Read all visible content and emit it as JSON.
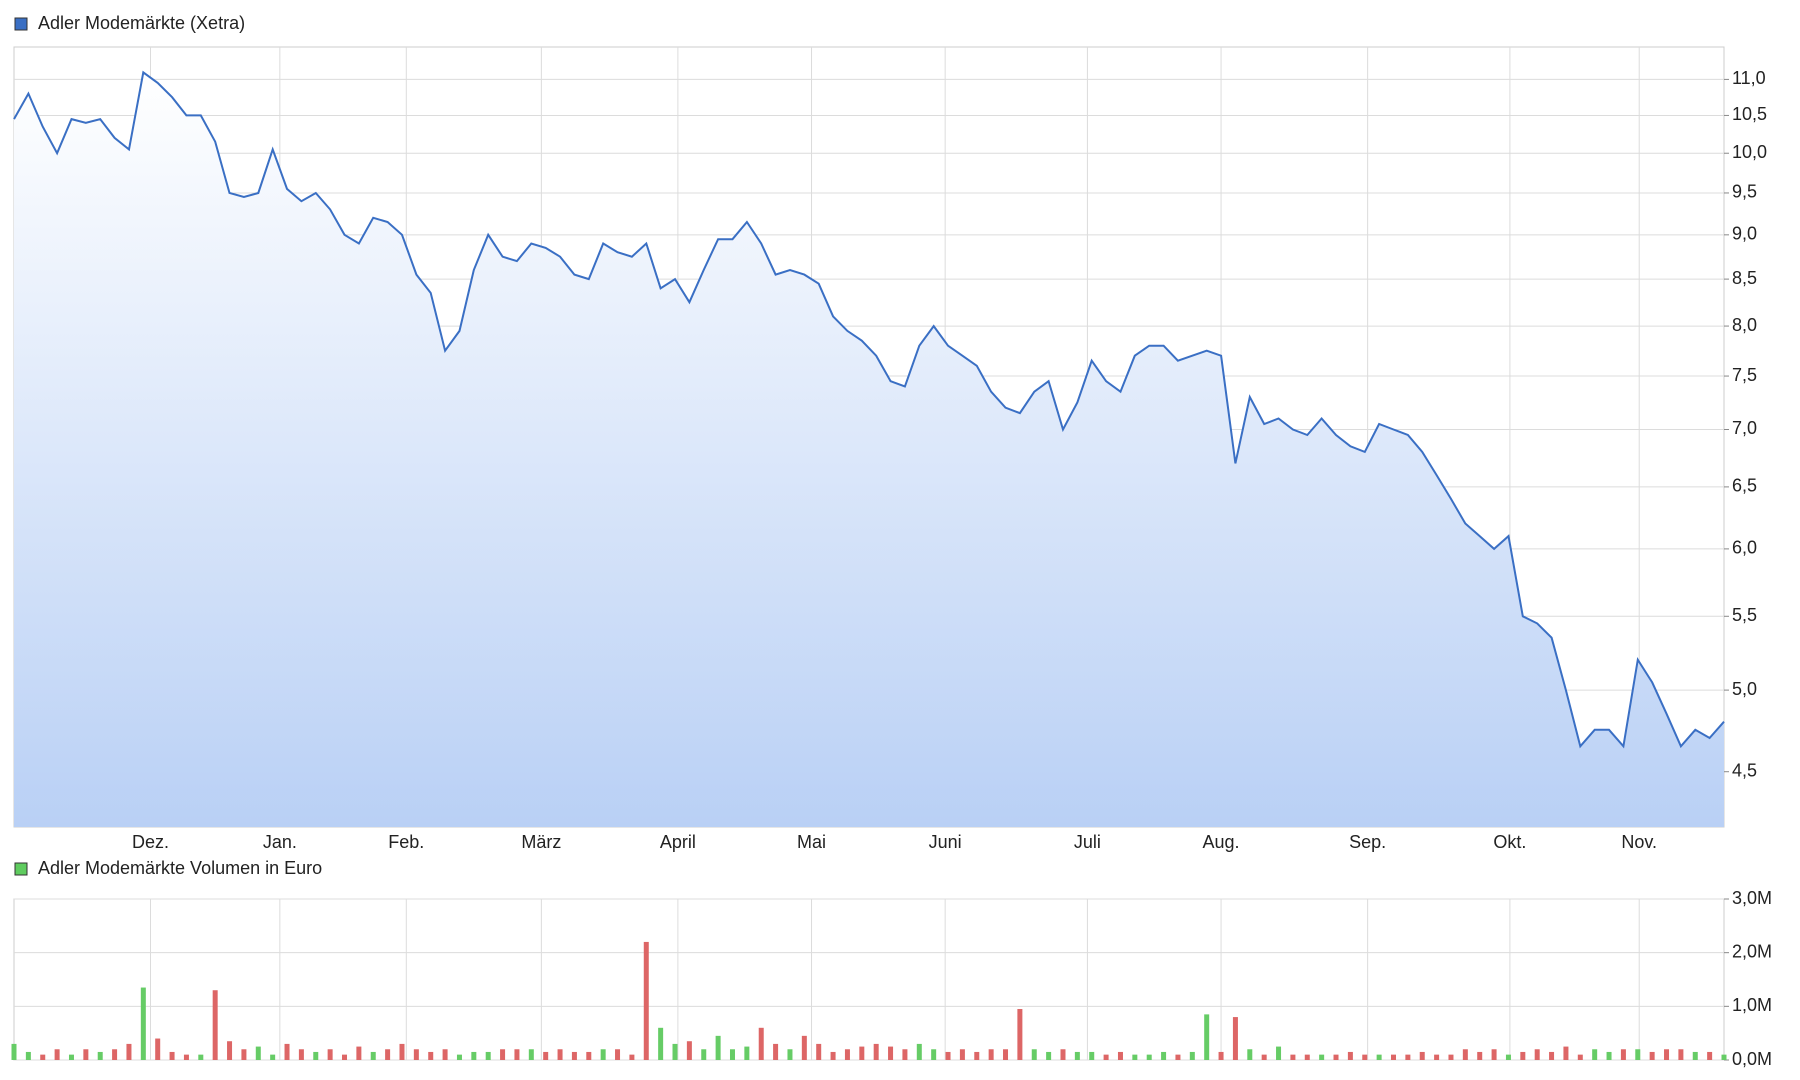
{
  "chart_data": [
    {
      "type": "line",
      "title": "Adler Modemärkte (Xetra)",
      "color": "#3a6fc4",
      "log": true,
      "grid": true,
      "values": [
        10.45,
        10.8,
        10.35,
        10.0,
        10.45,
        10.4,
        10.45,
        10.2,
        10.05,
        11.1,
        10.95,
        10.75,
        10.5,
        10.5,
        10.15,
        9.5,
        9.45,
        9.5,
        10.05,
        9.55,
        9.4,
        9.5,
        9.3,
        9.0,
        8.9,
        9.2,
        9.15,
        9.0,
        8.55,
        8.35,
        7.75,
        7.95,
        8.6,
        9.0,
        8.75,
        8.7,
        8.9,
        8.85,
        8.75,
        8.55,
        8.5,
        8.9,
        8.8,
        8.75,
        8.9,
        8.4,
        8.5,
        8.25,
        8.6,
        8.95,
        8.95,
        9.15,
        8.9,
        8.55,
        8.6,
        8.55,
        8.45,
        8.1,
        7.95,
        7.85,
        7.7,
        7.45,
        7.4,
        7.8,
        8.0,
        7.8,
        7.7,
        7.6,
        7.35,
        7.2,
        7.15,
        7.35,
        7.45,
        7.0,
        7.25,
        7.65,
        7.45,
        7.35,
        7.7,
        7.8,
        7.8,
        7.65,
        7.7,
        7.75,
        7.7,
        6.7,
        7.3,
        7.05,
        7.1,
        7.0,
        6.95,
        7.1,
        6.95,
        6.85,
        6.8,
        7.05,
        7.0,
        6.95,
        6.8,
        6.6,
        6.4,
        6.2,
        6.1,
        6.0,
        6.1,
        5.5,
        5.45,
        5.35,
        5.0,
        4.65,
        4.75,
        4.75,
        4.65,
        5.2,
        5.05,
        4.85,
        4.65,
        4.75,
        4.7,
        4.8
      ],
      "xticks": [
        {
          "value": 9.5,
          "label": "Dez."
        },
        {
          "value": 18.5,
          "label": "Jan."
        },
        {
          "value": 27.3,
          "label": "Feb."
        },
        {
          "value": 36.7,
          "label": "März"
        },
        {
          "value": 46.2,
          "label": "April"
        },
        {
          "value": 55.5,
          "label": "Mai"
        },
        {
          "value": 64.8,
          "label": "Juni"
        },
        {
          "value": 74.7,
          "label": "Juli"
        },
        {
          "value": 84.0,
          "label": "Aug."
        },
        {
          "value": 94.2,
          "label": "Sep."
        },
        {
          "value": 104.1,
          "label": "Okt."
        },
        {
          "value": 113.1,
          "label": "Nov."
        }
      ],
      "ylim": [
        4.19,
        11.47
      ],
      "yticks": [
        {
          "value": 4.5,
          "label": "4,5"
        },
        {
          "value": 5.0,
          "label": "5,0"
        },
        {
          "value": 5.5,
          "label": "5,5"
        },
        {
          "value": 6.0,
          "label": "6,0"
        },
        {
          "value": 6.5,
          "label": "6,5"
        },
        {
          "value": 7.0,
          "label": "7,0"
        },
        {
          "value": 7.5,
          "label": "7,5"
        },
        {
          "value": 8.0,
          "label": "8,0"
        },
        {
          "value": 8.5,
          "label": "8,5"
        },
        {
          "value": 9.0,
          "label": "9,0"
        },
        {
          "value": 9.5,
          "label": "9,5"
        },
        {
          "value": 10.0,
          "label": "10,0"
        },
        {
          "value": 10.5,
          "label": "10,5"
        },
        {
          "value": 11.0,
          "label": "11,0"
        }
      ]
    },
    {
      "type": "bar",
      "title": "Adler Modemärkte Volumen in Euro",
      "color": "#5fcc5f",
      "grid": true,
      "values": [
        0.3,
        0.15,
        0.1,
        0.2,
        0.1,
        0.2,
        0.15,
        0.2,
        0.3,
        1.35,
        0.4,
        0.15,
        0.1,
        0.1,
        1.3,
        0.35,
        0.2,
        0.25,
        0.1,
        0.3,
        0.2,
        0.15,
        0.2,
        0.1,
        0.25,
        0.15,
        0.2,
        0.3,
        0.2,
        0.15,
        0.2,
        0.1,
        0.15,
        0.15,
        0.2,
        0.2,
        0.2,
        0.15,
        0.2,
        0.15,
        0.15,
        0.2,
        0.2,
        0.1,
        2.2,
        0.6,
        0.3,
        0.35,
        0.2,
        0.45,
        0.2,
        0.25,
        0.6,
        0.3,
        0.2,
        0.45,
        0.3,
        0.15,
        0.2,
        0.25,
        0.3,
        0.25,
        0.2,
        0.3,
        0.2,
        0.15,
        0.2,
        0.15,
        0.2,
        0.2,
        0.95,
        0.2,
        0.15,
        0.2,
        0.15,
        0.15,
        0.1,
        0.15,
        0.1,
        0.1,
        0.15,
        0.1,
        0.15,
        0.85,
        0.15,
        0.8,
        0.2,
        0.1,
        0.25,
        0.1,
        0.1,
        0.1,
        0.1,
        0.15,
        0.1,
        0.1,
        0.1,
        0.1,
        0.15,
        0.1,
        0.1,
        0.2,
        0.15,
        0.2,
        0.1,
        0.15,
        0.2,
        0.15,
        0.25,
        0.1,
        0.2,
        0.15,
        0.2,
        0.2,
        0.15,
        0.2,
        0.2,
        0.15,
        0.15,
        0.1
      ],
      "colors": [
        "#6c6",
        "#6c6",
        "#d66",
        "#d66",
        "#6c6",
        "#d66",
        "#6c6",
        "#d66",
        "#d66",
        "#6c6",
        "#d66",
        "#d66",
        "#d66",
        "#6c6",
        "#d66",
        "#d66",
        "#d66",
        "#6c6",
        "#6c6",
        "#d66",
        "#d66",
        "#6c6",
        "#d66",
        "#d66",
        "#d66",
        "#6c6",
        "#d66",
        "#d66",
        "#d66",
        "#d66",
        "#d66",
        "#6c6",
        "#6c6",
        "#6c6",
        "#d66",
        "#d66",
        "#6c6",
        "#d66",
        "#d66",
        "#d66",
        "#d66",
        "#6c6",
        "#d66",
        "#d66",
        "#d66",
        "#6c6",
        "#6c6",
        "#d66",
        "#6c6",
        "#6c6",
        "#6c6",
        "#6c6",
        "#d66",
        "#d66",
        "#6c6",
        "#d66",
        "#d66",
        "#d66",
        "#d66",
        "#d66",
        "#d66",
        "#d66",
        "#d66",
        "#6c6",
        "#6c6",
        "#d66",
        "#d66",
        "#d66",
        "#d66",
        "#d66",
        "#d66",
        "#6c6",
        "#6c6",
        "#d66",
        "#6c6",
        "#6c6",
        "#d66",
        "#d66",
        "#6c6",
        "#6c6",
        "#6c6",
        "#d66",
        "#6c6",
        "#6c6",
        "#d66",
        "#d66",
        "#6c6",
        "#d66",
        "#6c6",
        "#d66",
        "#d66",
        "#6c6",
        "#d66",
        "#d66",
        "#d66",
        "#6c6",
        "#d66",
        "#d66",
        "#d66",
        "#d66",
        "#d66",
        "#d66",
        "#d66",
        "#d66",
        "#6c6",
        "#d66",
        "#d66",
        "#d66",
        "#d66",
        "#d66",
        "#6c6",
        "#6c6",
        "#d66",
        "#6c6",
        "#d66",
        "#d66",
        "#d66",
        "#6c6",
        "#d66",
        "#6c6"
      ],
      "ylim": [
        0,
        3
      ],
      "yticks": [
        {
          "value": 0,
          "label": "0,0M"
        },
        {
          "value": 1,
          "label": "1,0M"
        },
        {
          "value": 2,
          "label": "2,0M"
        },
        {
          "value": 3,
          "label": "3,0M"
        }
      ]
    }
  ]
}
